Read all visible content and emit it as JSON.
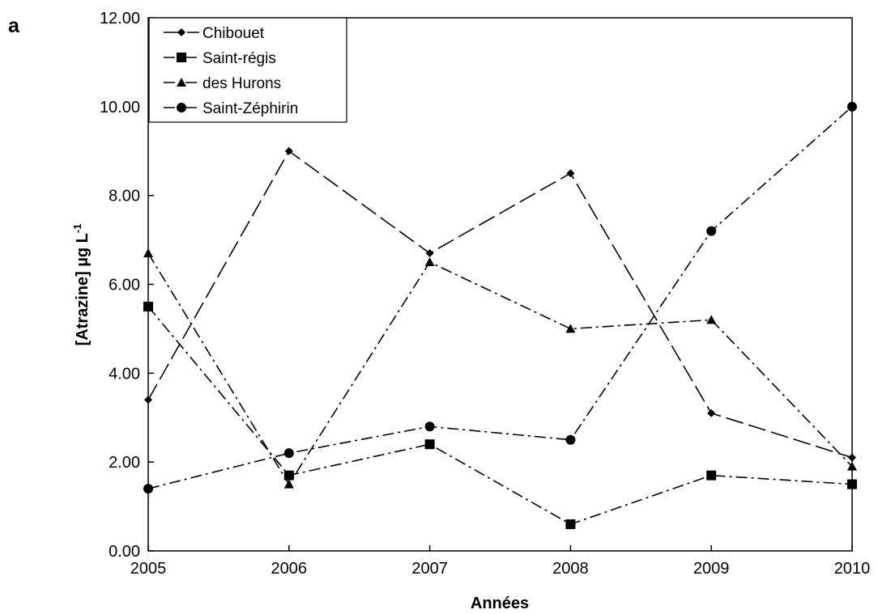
{
  "panel_label": "a",
  "chart_data": {
    "type": "line",
    "title": "",
    "xlabel": "Années",
    "ylabel": "[Atrazine] µg L",
    "ylabel_superscript": "-1",
    "x": [
      2005,
      2006,
      2007,
      2008,
      2009,
      2010
    ],
    "x_tick_labels": [
      "2005",
      "2006",
      "2007",
      "2008",
      "2009",
      "2010"
    ],
    "ylim": [
      0,
      12
    ],
    "y_ticks": [
      0,
      2,
      4,
      6,
      8,
      10,
      12
    ],
    "y_tick_labels": [
      "0.00",
      "2.00",
      "4.00",
      "6.00",
      "8.00",
      "10.00",
      "12.00"
    ],
    "grid": false,
    "legend_position": "top-left",
    "series": [
      {
        "name": "Chibouet",
        "marker": "diamond",
        "dash": "long-dash",
        "values": [
          3.4,
          9.0,
          6.7,
          8.5,
          3.1,
          2.1
        ]
      },
      {
        "name": "Saint-régis",
        "marker": "square",
        "dash": "dash-dot",
        "values": [
          5.5,
          1.7,
          2.4,
          0.6,
          1.7,
          1.5
        ]
      },
      {
        "name": "des Hurons",
        "marker": "triangle",
        "dash": "dash-dot",
        "values": [
          6.7,
          1.5,
          6.5,
          5.0,
          5.2,
          1.9
        ]
      },
      {
        "name": "Saint-Zéphirin",
        "marker": "circle",
        "dash": "dash-dot",
        "values": [
          1.4,
          2.2,
          2.8,
          2.5,
          7.2,
          10.0
        ]
      }
    ]
  }
}
